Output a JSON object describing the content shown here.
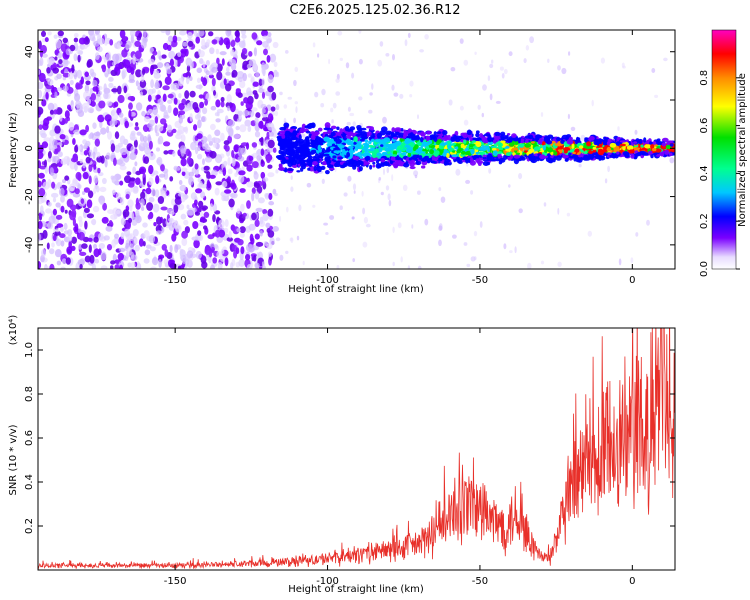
{
  "title": "C2E6.2025.125.02.36.R12",
  "chart_data": [
    {
      "type": "heatmap",
      "xlabel": "Height of straight line (km)",
      "ylabel": "Frequency (Hz)",
      "xlim": [
        -195,
        14
      ],
      "ylim": [
        -50,
        49
      ],
      "x_ticks": [
        -150,
        -100,
        -50,
        0
      ],
      "y_ticks": [
        -40,
        -20,
        0,
        20,
        40
      ],
      "description_values": {
        "noise_region_x": [
          -195,
          -117
        ],
        "signal_band_center_hz": 0,
        "signal_band_halfwidth_hz_at_start": 10,
        "signal_band_halfwidth_hz_at_end": 3
      },
      "colorbar": {
        "label": "Normalized spectral amplitude",
        "range": [
          0.0,
          1.0
        ],
        "ticks": [
          "0.0",
          "0.2",
          "0.4",
          "0.6",
          "0.8"
        ],
        "colors": [
          "#ffffff",
          "#e8dcff",
          "#7a00ff",
          "#0000ff",
          "#00c8ff",
          "#00ff90",
          "#00e000",
          "#ffff00",
          "#ff8c00",
          "#ff0000",
          "#ff00c0"
        ]
      },
      "grid": false
    },
    {
      "type": "line",
      "xlabel": "Height of straight line (km)",
      "ylabel": "SNR (10 * v/v)",
      "scale_label": "(x10⁴)",
      "xlim": [
        -195,
        14
      ],
      "ylim": [
        0,
        1.1
      ],
      "x_ticks": [
        -150,
        -100,
        -50,
        0
      ],
      "y_ticks": [
        0.2,
        0.4,
        0.6,
        0.8,
        1.0
      ],
      "y_tick_labels": [
        "0.2",
        "0.4",
        "0.6",
        "0.8",
        "1.0"
      ],
      "series": [
        {
          "color": "#e8302a",
          "points": [
            [
              -195,
              0.02
            ],
            [
              -180,
              0.02
            ],
            [
              -165,
              0.02
            ],
            [
              -150,
              0.02
            ],
            [
              -135,
              0.025
            ],
            [
              -120,
              0.03
            ],
            [
              -110,
              0.04
            ],
            [
              -100,
              0.05
            ],
            [
              -90,
              0.07
            ],
            [
              -80,
              0.09
            ],
            [
              -72,
              0.11
            ],
            [
              -66,
              0.15
            ],
            [
              -62,
              0.2
            ],
            [
              -58,
              0.26
            ],
            [
              -54,
              0.3
            ],
            [
              -50,
              0.28
            ],
            [
              -46,
              0.22
            ],
            [
              -42,
              0.2
            ],
            [
              -38,
              0.26
            ],
            [
              -34,
              0.14
            ],
            [
              -30,
              0.06
            ],
            [
              -27,
              0.05
            ],
            [
              -24,
              0.18
            ],
            [
              -20,
              0.36
            ],
            [
              -16,
              0.42
            ],
            [
              -12,
              0.46
            ],
            [
              -8,
              0.54
            ],
            [
              -4,
              0.6
            ],
            [
              0,
              0.62
            ],
            [
              4,
              0.56
            ],
            [
              8,
              0.72
            ],
            [
              10,
              0.95
            ],
            [
              12,
              0.58
            ],
            [
              14,
              0.6
            ]
          ]
        }
      ],
      "grid": false
    }
  ]
}
